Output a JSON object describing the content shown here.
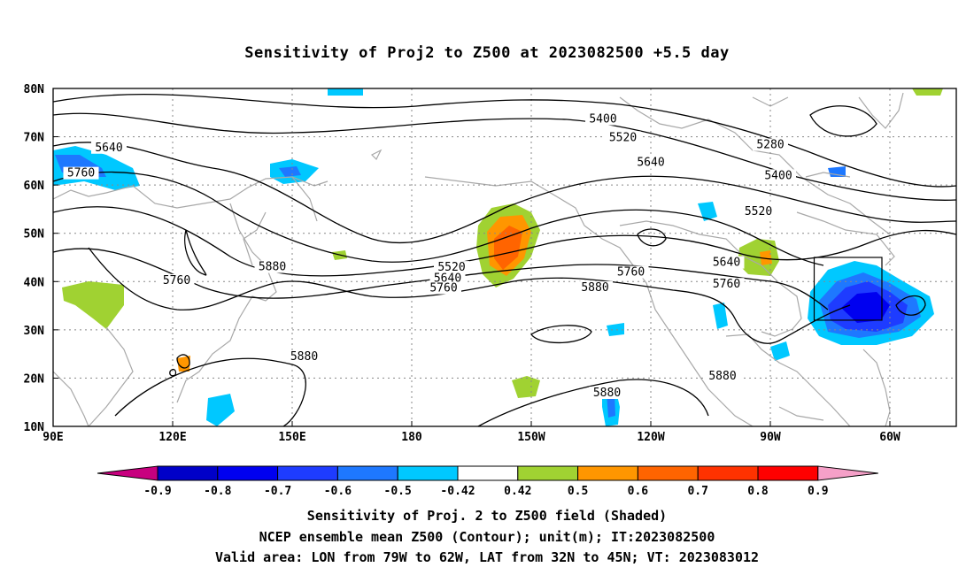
{
  "title": "Sensitivity of Proj2 to Z500 at 2023082500 +5.5 day",
  "map": {
    "lat_ticks": [
      "80N",
      "70N",
      "60N",
      "50N",
      "40N",
      "30N",
      "20N",
      "10N"
    ],
    "lon_ticks": [
      "90E",
      "120E",
      "150E",
      "180",
      "150W",
      "120W",
      "90W",
      "60W"
    ],
    "contour_labels": [
      {
        "text": "5400",
        "lon": 228,
        "lat": 73.3
      },
      {
        "text": "5520",
        "lon": 233,
        "lat": 69.5
      },
      {
        "text": "5640",
        "lon": 240,
        "lat": 64.3
      },
      {
        "text": "5280",
        "lon": 270,
        "lat": 68
      },
      {
        "text": "5400",
        "lon": 272,
        "lat": 61.6
      },
      {
        "text": "5520",
        "lon": 267,
        "lat": 54.2
      },
      {
        "text": "5640",
        "lon": 259,
        "lat": 43.6
      },
      {
        "text": "5760",
        "lon": 259,
        "lat": 39.1
      },
      {
        "text": "5760",
        "lon": 235,
        "lat": 41.6
      },
      {
        "text": "5880",
        "lon": 226,
        "lat": 38.4
      },
      {
        "text": "5520",
        "lon": 190,
        "lat": 42.6
      },
      {
        "text": "5640",
        "lon": 189,
        "lat": 40.3
      },
      {
        "text": "5760",
        "lon": 188,
        "lat": 38.3
      },
      {
        "text": "5640",
        "lon": 104,
        "lat": 67.4
      },
      {
        "text": "5760",
        "lon": 97,
        "lat": 62.1
      },
      {
        "text": "5760",
        "lon": 121,
        "lat": 39.9
      },
      {
        "text": "5880",
        "lon": 145,
        "lat": 42.7
      },
      {
        "text": "5880",
        "lon": 153,
        "lat": 24.1
      },
      {
        "text": "5880",
        "lon": 229,
        "lat": 16.6
      },
      {
        "text": "5880",
        "lon": 258,
        "lat": 20.1
      }
    ],
    "valid_area": {
      "lon_min": -79,
      "lon_max": -62,
      "lat_min": 32,
      "lat_max": 45
    }
  },
  "colorbar": {
    "labels": [
      "-0.9",
      "-0.8",
      "-0.7",
      "-0.6",
      "-0.5",
      "-0.42",
      "0.42",
      "0.5",
      "0.6",
      "0.7",
      "0.8",
      "0.9"
    ],
    "colors": [
      "#0000c8",
      "#0000f0",
      "#1e3cff",
      "#1e78ff",
      "#00c8ff",
      "#ffffff",
      "#a0d232",
      "#ff9600",
      "#ff6400",
      "#ff3200",
      "#ff0000"
    ],
    "low_color": "#c8007f",
    "high_color": "#f5a0c8"
  },
  "captions": {
    "line1": "Sensitivity of Proj. 2 to Z500 field (Shaded)",
    "line2": "NCEP ensemble mean Z500 (Contour); unit(m); IT:2023082500",
    "line3": "Valid area: LON from 79W to 62W, LAT from 32N to 45N; VT: 2023083012"
  }
}
